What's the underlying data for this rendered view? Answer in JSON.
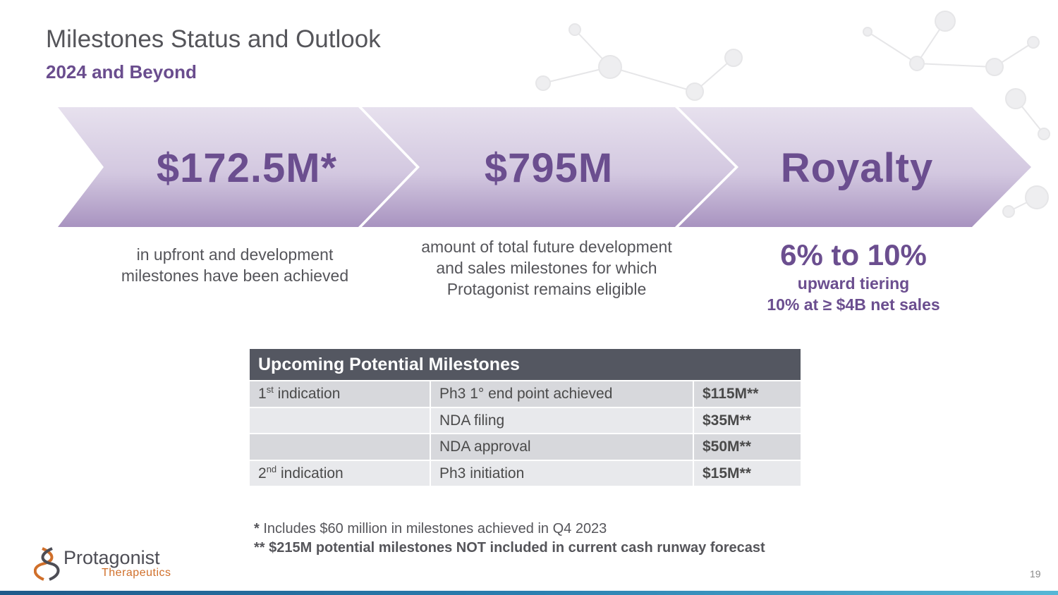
{
  "header": {
    "title": "Milestones Status and Outlook",
    "subtitle": "2024 and Beyond"
  },
  "chevrons": [
    {
      "value": "$172.5M*",
      "description": "in upfront and development milestones have been achieved"
    },
    {
      "value": "$795M",
      "description": "amount of total future development and sales milestones for which Protagonist remains eligible"
    },
    {
      "value": "Royalty",
      "range": "6% to 10%",
      "line1": "upward tiering",
      "line2": "10% at ≥ $4B net sales"
    }
  ],
  "milestones_table": {
    "title": "Upcoming Potential Milestones",
    "rows": [
      {
        "indication_num": "1",
        "indication_sup": "st",
        "indication_text": " indication",
        "event": "Ph3 1° end point achieved",
        "amount": "$115M**"
      },
      {
        "indication_num": "",
        "indication_sup": "",
        "indication_text": "",
        "event": "NDA filing",
        "amount": "$35M**"
      },
      {
        "indication_num": "",
        "indication_sup": "",
        "indication_text": "",
        "event": "NDA approval",
        "amount": "$50M**"
      },
      {
        "indication_num": "2",
        "indication_sup": "nd",
        "indication_text": " indication",
        "event": "Ph3 initiation",
        "amount": "$15M**"
      }
    ]
  },
  "footnotes": {
    "note1_marker": "*",
    "note1_text": " Includes $60 million in milestones achieved in Q4 2023",
    "note2": "** $215M potential milestones NOT included in current cash runway forecast"
  },
  "logo": {
    "name": "Protagonist",
    "sub": "Therapeutics"
  },
  "page_number": "19",
  "colors": {
    "accent_purple": "#6b4e8f",
    "table_header": "#545761",
    "text_gray": "#55555a"
  }
}
